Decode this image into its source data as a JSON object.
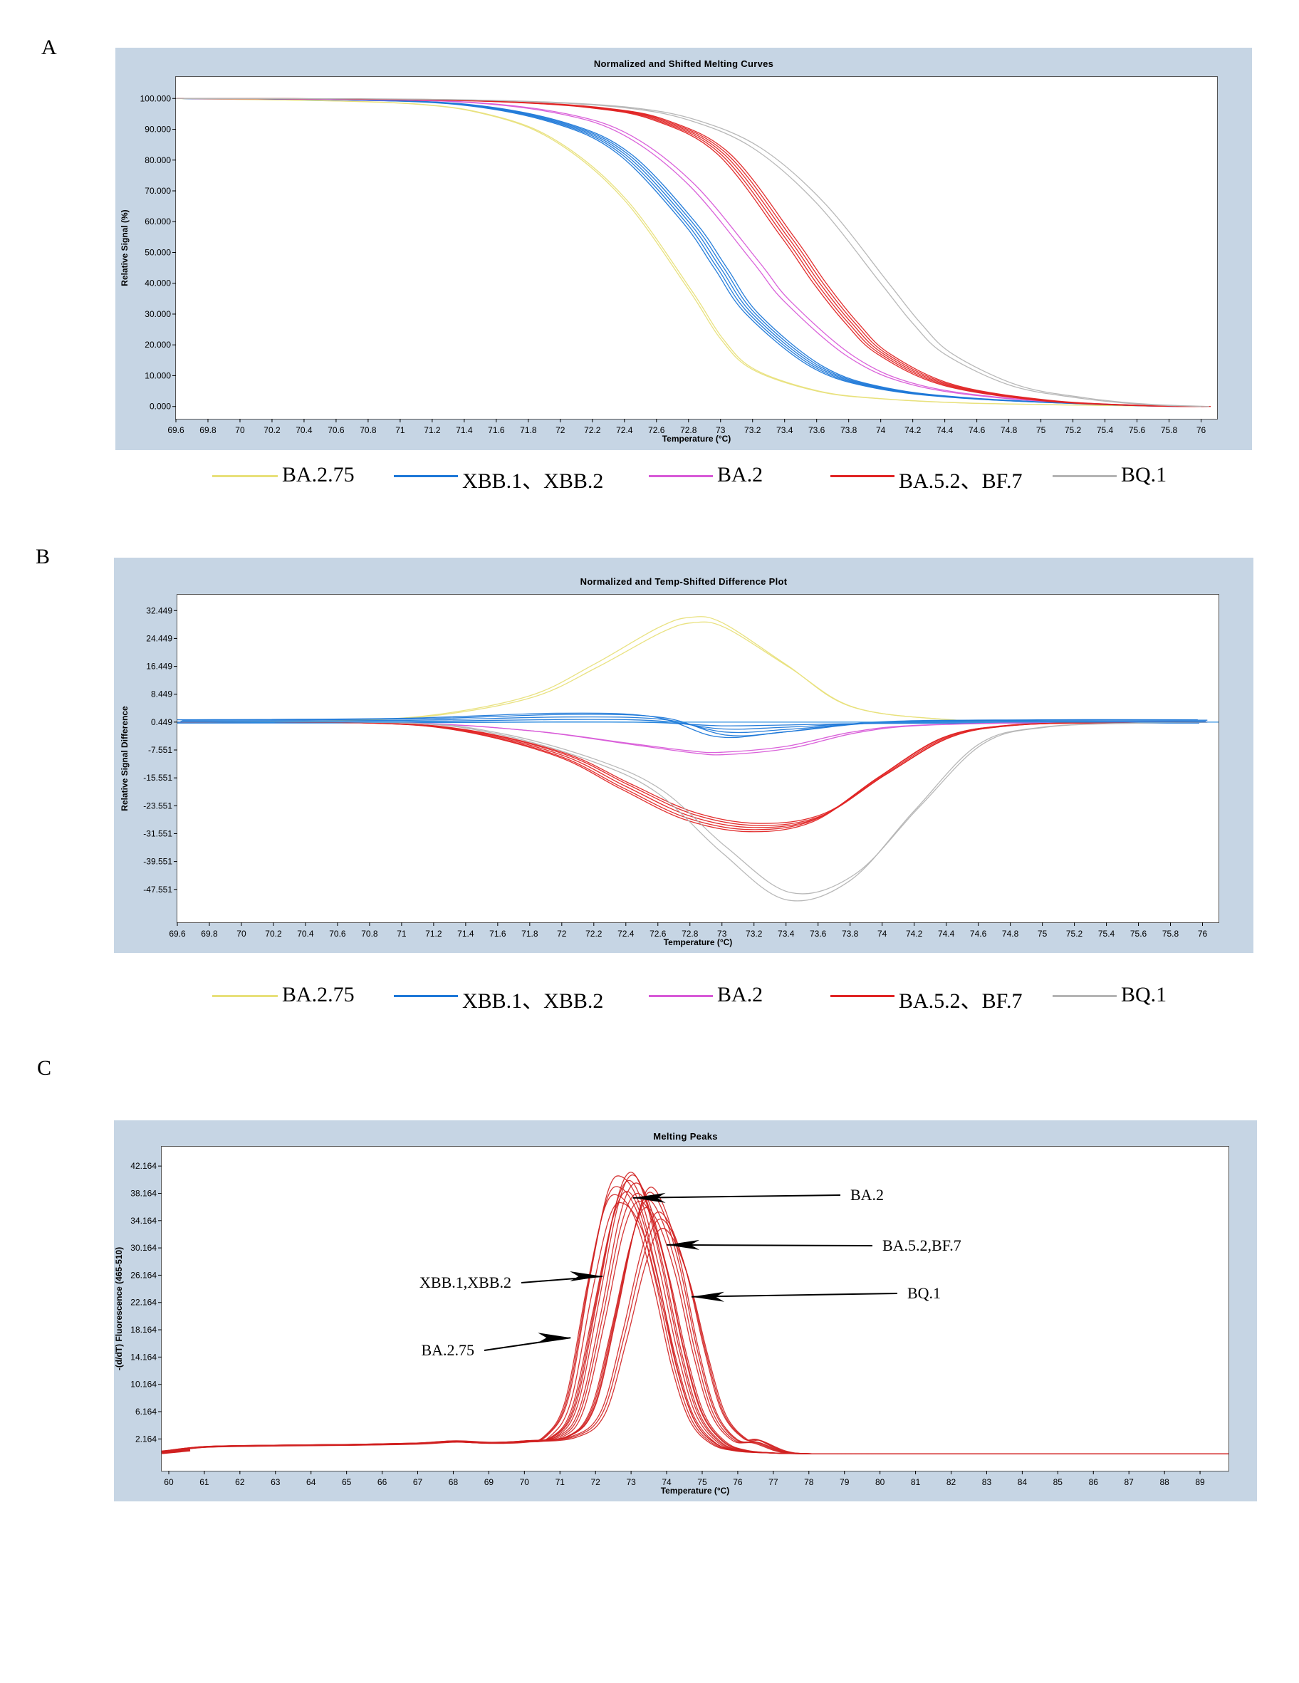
{
  "panels": [
    {
      "letter": "A"
    },
    {
      "letter": "B"
    },
    {
      "letter": "C"
    }
  ],
  "legend": [
    {
      "label": "BA.2.75",
      "color": "#e8e07a"
    },
    {
      "label": "XBB.1、XBB.2",
      "color": "#1e78d8"
    },
    {
      "label": "BA.2",
      "color": "#d85ad8"
    },
    {
      "label": "BA.5.2、BF.7",
      "color": "#e02424"
    },
    {
      "label": "BQ.1",
      "color": "#b4b4b4"
    }
  ],
  "chart_data": [
    {
      "type": "line",
      "title": "Normalized and Shifted Melting Curves",
      "xlabel": "Temperature (°C)",
      "ylabel": "Relative Signal (%)",
      "xlim": [
        69.6,
        76.1
      ],
      "ylim": [
        -4,
        107
      ],
      "x_ticks": [
        "69.6",
        "69.8",
        "70",
        "70.2",
        "70.4",
        "70.6",
        "70.8",
        "71",
        "71.2",
        "71.4",
        "71.6",
        "71.8",
        "72",
        "72.2",
        "72.4",
        "72.6",
        "72.8",
        "73",
        "73.2",
        "73.4",
        "73.6",
        "73.8",
        "74",
        "74.2",
        "74.4",
        "74.6",
        "74.8",
        "75",
        "75.2",
        "75.4",
        "75.6",
        "75.8",
        "76"
      ],
      "y_ticks": [
        "0.000",
        "10.000",
        "20.000",
        "30.000",
        "40.000",
        "50.000",
        "60.000",
        "70.000",
        "80.000",
        "90.000",
        "100.000"
      ],
      "series": [
        {
          "name": "BA.2.75",
          "color": "#e8e07a",
          "x": [
            69.6,
            71.0,
            71.6,
            72.0,
            72.4,
            72.8,
            73.0,
            73.2,
            73.6,
            74.0,
            74.6,
            75.6,
            76.0
          ],
          "y": [
            100,
            98.5,
            94,
            85,
            67,
            38,
            22,
            12,
            5,
            2.5,
            1,
            0.2,
            0
          ]
        },
        {
          "name": "XBB.1、XBB.2",
          "color": "#1e78d8",
          "x": [
            69.6,
            70.6,
            71.4,
            72.0,
            72.4,
            72.8,
            73.0,
            73.2,
            73.6,
            74.0,
            74.6,
            75.6,
            76.0
          ],
          "y": [
            100,
            99.6,
            98,
            92,
            82,
            60,
            45,
            30,
            13,
            6,
            2.5,
            0.3,
            0
          ]
        },
        {
          "name": "BA.2",
          "color": "#d85ad8",
          "x": [
            69.6,
            70.6,
            71.4,
            72.0,
            72.4,
            72.8,
            73.2,
            73.4,
            73.8,
            74.2,
            74.8,
            75.6,
            76.0
          ],
          "y": [
            100,
            99.7,
            98.8,
            95,
            88,
            72,
            47,
            34,
            16,
            7,
            2.5,
            0.3,
            0
          ]
        },
        {
          "name": "BA.5.2、BF.7",
          "color": "#e02424",
          "x": [
            69.6,
            70.8,
            71.6,
            72.2,
            72.6,
            73.0,
            73.4,
            73.6,
            73.8,
            74.0,
            74.4,
            75.0,
            75.6,
            76.0
          ],
          "y": [
            100,
            99.8,
            99,
            97,
            93,
            82,
            55,
            40,
            27,
            17,
            7,
            2,
            0.3,
            0
          ]
        },
        {
          "name": "BQ.1",
          "color": "#b4b4b4",
          "x": [
            69.6,
            71.0,
            71.8,
            72.4,
            72.8,
            73.2,
            73.6,
            74.0,
            74.2,
            74.4,
            74.8,
            75.2,
            75.6,
            76.0
          ],
          "y": [
            100,
            99.8,
            99,
            97,
            93,
            84,
            66,
            40,
            27,
            17,
            7,
            3,
            0.8,
            0
          ]
        }
      ],
      "grid": false,
      "legend_position": "bottom"
    },
    {
      "type": "line",
      "title": "Normalized and Temp-Shifted Difference Plot",
      "xlabel": "Temperature (°C)",
      "ylabel": "Relative Signal Difference",
      "xlim": [
        69.6,
        76.1
      ],
      "ylim": [
        -57,
        37
      ],
      "x_ticks": [
        "69.6",
        "69.8",
        "70",
        "70.2",
        "70.4",
        "70.6",
        "70.8",
        "71",
        "71.2",
        "71.4",
        "71.6",
        "71.8",
        "72",
        "72.2",
        "72.4",
        "72.6",
        "72.8",
        "73",
        "73.2",
        "73.4",
        "73.6",
        "73.8",
        "74",
        "74.2",
        "74.4",
        "74.6",
        "74.8",
        "75",
        "75.2",
        "75.4",
        "75.6",
        "75.8",
        "76"
      ],
      "y_ticks": [
        "-47.551",
        "-39.551",
        "-31.551",
        "-23.551",
        "-15.551",
        "-7.551",
        "0.449",
        "8.449",
        "16.449",
        "24.449",
        "32.449"
      ],
      "series": [
        {
          "name": "BA.2.75",
          "color": "#e8e07a",
          "x": [
            69.6,
            70.6,
            71.2,
            71.8,
            72.2,
            72.6,
            72.8,
            73.0,
            73.4,
            73.8,
            74.4,
            75.0,
            76.0
          ],
          "y": [
            0.449,
            0.9,
            2.5,
            8,
            17,
            27.5,
            30.5,
            29,
            17,
            5,
            1.2,
            0.5,
            0.449
          ]
        },
        {
          "name": "XBB.1、XBB.2",
          "color": "#1e78d8",
          "x": [
            69.6,
            71.0,
            72.0,
            72.6,
            73.0,
            73.4,
            74.0,
            75.0,
            76.0
          ],
          "y": [
            0.449,
            0.6,
            1.2,
            0.8,
            -1.5,
            -1.0,
            0.2,
            0.449,
            0.449
          ]
        },
        {
          "name": "BA.2",
          "color": "#d85ad8",
          "x": [
            69.6,
            71.0,
            71.8,
            72.4,
            72.8,
            73.0,
            73.4,
            73.8,
            74.2,
            75.0,
            76.0
          ],
          "y": [
            0.449,
            0.2,
            -2,
            -5.5,
            -7.8,
            -8.2,
            -6.5,
            -2.5,
            -0.5,
            0.3,
            0.449
          ]
        },
        {
          "name": "BA.5.2、BF.7",
          "color": "#e02424",
          "x": [
            69.6,
            70.8,
            71.4,
            72.0,
            72.4,
            72.8,
            73.2,
            73.6,
            74.0,
            74.4,
            74.8,
            75.4,
            76.0
          ],
          "y": [
            0.449,
            0.2,
            -2,
            -9,
            -18,
            -26.5,
            -29.8,
            -27,
            -15,
            -4,
            -0.5,
            0.3,
            0.449
          ]
        },
        {
          "name": "BQ.1",
          "color": "#b4b4b4",
          "x": [
            69.6,
            71.0,
            71.6,
            72.2,
            72.6,
            73.0,
            73.4,
            73.8,
            74.2,
            74.6,
            75.0,
            75.6,
            76.0
          ],
          "y": [
            0.449,
            0.2,
            -3,
            -11,
            -20,
            -37,
            -50.5,
            -45,
            -25,
            -6,
            -1,
            0.2,
            0.449
          ]
        }
      ],
      "grid": false,
      "legend_position": "bottom"
    },
    {
      "type": "line",
      "title": "Melting Peaks",
      "xlabel": "Temperature (°C)",
      "ylabel": "-(d/dT) Fluorescence (465-510)",
      "xlim": [
        59.8,
        89.8
      ],
      "ylim": [
        -2.5,
        45
      ],
      "x_ticks": [
        "60",
        "61",
        "62",
        "63",
        "64",
        "65",
        "66",
        "67",
        "68",
        "69",
        "70",
        "71",
        "72",
        "73",
        "74",
        "75",
        "76",
        "77",
        "78",
        "79",
        "80",
        "81",
        "82",
        "83",
        "84",
        "85",
        "86",
        "87",
        "88",
        "89"
      ],
      "y_ticks": [
        "2.164",
        "6.164",
        "10.164",
        "14.164",
        "18.164",
        "22.164",
        "26.164",
        "30.164",
        "34.164",
        "38.164",
        "42.164"
      ],
      "series": [
        {
          "name": "BA.2.75",
          "color": "#d02020",
          "x": [
            59.8,
            61,
            63,
            65,
            67,
            68,
            69,
            70,
            70.6,
            71.2,
            71.8,
            72.3,
            72.7,
            73.2,
            73.7,
            74.2,
            74.7,
            75.3,
            76,
            77,
            78,
            80,
            89.8
          ],
          "y": [
            0.3,
            1,
            1.2,
            1.3,
            1.5,
            1.8,
            1.6,
            1.8,
            2.6,
            8,
            25,
            37,
            39,
            35,
            25,
            13,
            5,
            1.5,
            0.4,
            0.1,
            0,
            0,
            0
          ]
        },
        {
          "name": "XBB.1,XBB.2",
          "color": "#d02020",
          "x": [
            59.8,
            61,
            63,
            65,
            67,
            68,
            69,
            70,
            70.8,
            71.4,
            72.0,
            72.5,
            72.9,
            73.3,
            73.8,
            74.3,
            74.8,
            75.4,
            76,
            77,
            78,
            80,
            89.8
          ],
          "y": [
            0.3,
            1,
            1.2,
            1.3,
            1.5,
            1.8,
            1.6,
            1.8,
            2.5,
            7,
            22,
            35,
            40,
            37,
            27,
            15,
            6,
            1.8,
            0.5,
            0.1,
            0,
            0,
            0
          ]
        },
        {
          "name": "BA.2",
          "color": "#d02020",
          "x": [
            59.8,
            61,
            63,
            65,
            67,
            68,
            69,
            70,
            71.0,
            71.6,
            72.2,
            72.7,
            73.1,
            73.5,
            74.0,
            74.5,
            75.0,
            75.6,
            76.2,
            77,
            78,
            80,
            89.8
          ],
          "y": [
            0.3,
            1,
            1.2,
            1.3,
            1.5,
            1.8,
            1.6,
            1.8,
            2.5,
            6.5,
            20,
            33,
            38,
            36,
            27,
            15,
            6,
            1.8,
            0.5,
            0.1,
            0,
            0,
            0
          ]
        },
        {
          "name": "BA.5.2,BF.7",
          "color": "#d02020",
          "x": [
            59.8,
            61,
            63,
            65,
            67,
            68,
            69,
            70,
            71.2,
            71.9,
            72.5,
            73.0,
            73.4,
            73.8,
            74.3,
            74.8,
            75.3,
            75.9,
            76.5,
            77.2,
            78,
            80,
            89.8
          ],
          "y": [
            0.3,
            1,
            1.2,
            1.3,
            1.5,
            1.8,
            1.6,
            1.8,
            2.5,
            6.5,
            19,
            31,
            37,
            35,
            27,
            15,
            6,
            2,
            1.6,
            0.3,
            0,
            0,
            0
          ]
        },
        {
          "name": "BQ.1",
          "color": "#d02020",
          "x": [
            59.8,
            61,
            63,
            65,
            67,
            68,
            69,
            70,
            71.4,
            72.2,
            72.8,
            73.3,
            73.7,
            74.1,
            74.6,
            75.1,
            75.6,
            76.2,
            76.6,
            77.3,
            78,
            80,
            89.8
          ],
          "y": [
            0.3,
            1,
            1.2,
            1.3,
            1.5,
            1.8,
            1.6,
            1.8,
            2.5,
            6,
            17,
            28,
            34,
            33,
            26,
            15,
            6,
            2.2,
            2.0,
            0.4,
            0,
            0,
            0
          ]
        }
      ],
      "annotations": [
        {
          "text": "BA.2",
          "target_x": 73.05,
          "target_y": 37.5
        },
        {
          "text": "BA.5.2,BF.7",
          "target_x": 74.0,
          "target_y": 30.6
        },
        {
          "text": "XBB.1,XBB.2",
          "target_x": 72.2,
          "target_y": 26.0
        },
        {
          "text": "BQ.1",
          "target_x": 74.7,
          "target_y": 23.0
        },
        {
          "text": "BA.2.75",
          "target_x": 71.3,
          "target_y": 17.0
        }
      ],
      "grid": false
    }
  ]
}
